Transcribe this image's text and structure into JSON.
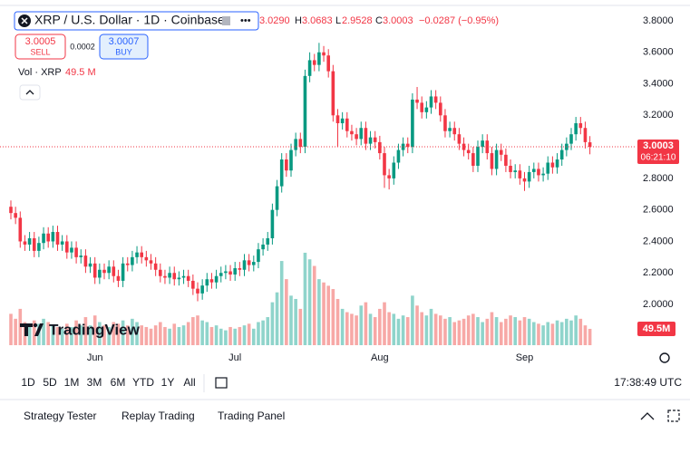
{
  "chart_data": {
    "type": "candlestick",
    "title": "XRP / U.S. Dollar · 1D · Coinbase",
    "readout": {
      "open": "3.0290",
      "high_label": "H",
      "high": "3.0683",
      "low_label": "L",
      "low": "2.9528",
      "close_label": "C",
      "close": "3.0003",
      "change": "−0.0287 (−0.95%)"
    },
    "sell_price": "3.0005",
    "sell_label": "SELL",
    "spread": "0.0002",
    "buy_price": "3.0007",
    "buy_label": "BUY",
    "volume_title": "Vol · XRP",
    "volume_value": "49.5 M",
    "up_color": "#089981",
    "down_color": "#f23645",
    "volume_up_color": "#8fd4cb",
    "volume_down_color": "#f7a8a6",
    "ylim": [
      1.73,
      3.886
    ],
    "yticks": [
      {
        "value": 3.8,
        "label": "3.8000"
      },
      {
        "value": 3.6,
        "label": "3.6000"
      },
      {
        "value": 3.4,
        "label": "3.4000"
      },
      {
        "value": 3.2,
        "label": "3.2000"
      },
      {
        "value": 3.0,
        "label": "3.0000"
      },
      {
        "value": 2.8,
        "label": "2.8000"
      },
      {
        "value": 2.6,
        "label": "2.6000"
      },
      {
        "value": 2.4,
        "label": "2.4000"
      },
      {
        "value": 2.2,
        "label": "2.2000"
      },
      {
        "value": 2.0,
        "label": "2.0000"
      }
    ],
    "xticks": [
      {
        "value": 18,
        "label": "Jun"
      },
      {
        "value": 48,
        "label": "Jul"
      },
      {
        "value": 79,
        "label": "Aug"
      },
      {
        "value": 110,
        "label": "Sep"
      }
    ],
    "grid": false,
    "last_price": {
      "value": 3.0003,
      "label": "3.0003",
      "countdown": "06:21:10"
    },
    "vlim": [
      0,
      332
    ],
    "ohlc": [
      [
        2.62,
        2.66,
        2.54,
        2.58
      ],
      [
        2.58,
        2.62,
        2.51,
        2.55
      ],
      [
        2.55,
        2.59,
        2.36,
        2.4
      ],
      [
        2.4,
        2.44,
        2.34,
        2.38
      ],
      [
        2.38,
        2.46,
        2.34,
        2.42
      ],
      [
        2.42,
        2.46,
        2.3,
        2.34
      ],
      [
        2.34,
        2.43,
        2.3,
        2.39
      ],
      [
        2.39,
        2.49,
        2.35,
        2.45
      ],
      [
        2.45,
        2.49,
        2.36,
        2.4
      ],
      [
        2.4,
        2.5,
        2.36,
        2.46
      ],
      [
        2.46,
        2.5,
        2.34,
        2.38
      ],
      [
        2.38,
        2.44,
        2.34,
        2.4
      ],
      [
        2.4,
        2.44,
        2.29,
        2.33
      ],
      [
        2.33,
        2.4,
        2.29,
        2.36
      ],
      [
        2.36,
        2.4,
        2.26,
        2.3
      ],
      [
        2.3,
        2.35,
        2.26,
        2.31
      ],
      [
        2.31,
        2.35,
        2.2,
        2.24
      ],
      [
        2.24,
        2.3,
        2.2,
        2.26
      ],
      [
        2.26,
        2.3,
        2.13,
        2.17
      ],
      [
        2.17,
        2.26,
        2.13,
        2.22
      ],
      [
        2.22,
        2.26,
        2.16,
        2.2
      ],
      [
        2.2,
        2.28,
        2.16,
        2.24
      ],
      [
        2.24,
        2.28,
        2.14,
        2.18
      ],
      [
        2.18,
        2.22,
        2.11,
        2.15
      ],
      [
        2.15,
        2.3,
        2.11,
        2.26
      ],
      [
        2.26,
        2.3,
        2.21,
        2.25
      ],
      [
        2.25,
        2.34,
        2.21,
        2.3
      ],
      [
        2.3,
        2.37,
        2.26,
        2.33
      ],
      [
        2.33,
        2.37,
        2.26,
        2.3
      ],
      [
        2.3,
        2.34,
        2.24,
        2.28
      ],
      [
        2.28,
        2.32,
        2.22,
        2.26
      ],
      [
        2.26,
        2.3,
        2.18,
        2.22
      ],
      [
        2.22,
        2.26,
        2.14,
        2.18
      ],
      [
        2.18,
        2.22,
        2.13,
        2.17
      ],
      [
        2.17,
        2.24,
        2.13,
        2.2
      ],
      [
        2.2,
        2.24,
        2.12,
        2.16
      ],
      [
        2.16,
        2.21,
        2.12,
        2.17
      ],
      [
        2.17,
        2.22,
        2.13,
        2.18
      ],
      [
        2.18,
        2.22,
        2.11,
        2.15
      ],
      [
        2.15,
        2.19,
        2.06,
        2.1
      ],
      [
        2.1,
        2.14,
        2.02,
        2.07
      ],
      [
        2.07,
        2.16,
        2.03,
        2.12
      ],
      [
        2.12,
        2.2,
        2.08,
        2.16
      ],
      [
        2.16,
        2.2,
        2.1,
        2.14
      ],
      [
        2.14,
        2.22,
        2.1,
        2.18
      ],
      [
        2.18,
        2.24,
        2.14,
        2.2
      ],
      [
        2.2,
        2.25,
        2.16,
        2.21
      ],
      [
        2.21,
        2.25,
        2.15,
        2.19
      ],
      [
        2.19,
        2.27,
        2.15,
        2.23
      ],
      [
        2.23,
        2.27,
        2.18,
        2.22
      ],
      [
        2.22,
        2.32,
        2.18,
        2.28
      ],
      [
        2.28,
        2.32,
        2.21,
        2.25
      ],
      [
        2.25,
        2.31,
        2.21,
        2.27
      ],
      [
        2.27,
        2.39,
        2.23,
        2.35
      ],
      [
        2.35,
        2.42,
        2.31,
        2.38
      ],
      [
        2.38,
        2.46,
        2.34,
        2.42
      ],
      [
        2.42,
        2.64,
        2.38,
        2.6
      ],
      [
        2.6,
        2.79,
        2.56,
        2.75
      ],
      [
        2.75,
        2.96,
        2.71,
        2.92
      ],
      [
        2.92,
        2.96,
        2.81,
        2.85
      ],
      [
        2.85,
        3.02,
        2.81,
        2.98
      ],
      [
        2.98,
        3.09,
        2.94,
        3.05
      ],
      [
        3.05,
        3.09,
        2.96,
        3.0
      ],
      [
        3.0,
        3.49,
        2.96,
        3.45
      ],
      [
        3.45,
        3.6,
        3.41,
        3.55
      ],
      [
        3.55,
        3.59,
        3.48,
        3.52
      ],
      [
        3.52,
        3.66,
        3.48,
        3.6
      ],
      [
        3.6,
        3.64,
        3.54,
        3.58
      ],
      [
        3.58,
        3.62,
        3.44,
        3.48
      ],
      [
        3.48,
        3.52,
        3.16,
        3.2
      ],
      [
        3.2,
        3.24,
        3.0,
        3.15
      ],
      [
        3.15,
        3.22,
        3.11,
        3.18
      ],
      [
        3.18,
        3.22,
        3.06,
        3.1
      ],
      [
        3.1,
        3.14,
        3.04,
        3.08
      ],
      [
        3.08,
        3.12,
        3.01,
        3.05
      ],
      [
        3.05,
        3.16,
        3.01,
        3.12
      ],
      [
        3.12,
        3.16,
        2.98,
        3.02
      ],
      [
        3.02,
        3.1,
        2.98,
        3.06
      ],
      [
        3.06,
        3.1,
        2.99,
        3.03
      ],
      [
        3.03,
        3.07,
        2.92,
        2.96
      ],
      [
        2.96,
        3.0,
        2.74,
        2.82
      ],
      [
        2.82,
        2.86,
        2.73,
        2.8
      ],
      [
        2.8,
        2.94,
        2.76,
        2.9
      ],
      [
        2.9,
        3.02,
        2.86,
        2.98
      ],
      [
        2.98,
        3.06,
        2.94,
        3.02
      ],
      [
        3.02,
        3.06,
        2.96,
        3.0
      ],
      [
        3.0,
        3.34,
        2.96,
        3.3
      ],
      [
        3.3,
        3.38,
        3.24,
        3.28
      ],
      [
        3.28,
        3.32,
        3.18,
        3.22
      ],
      [
        3.22,
        3.29,
        3.18,
        3.25
      ],
      [
        3.25,
        3.36,
        3.21,
        3.32
      ],
      [
        3.32,
        3.36,
        3.24,
        3.28
      ],
      [
        3.28,
        3.32,
        3.16,
        3.2
      ],
      [
        3.2,
        3.24,
        3.06,
        3.1
      ],
      [
        3.1,
        3.16,
        3.06,
        3.12
      ],
      [
        3.12,
        3.16,
        3.04,
        3.08
      ],
      [
        3.08,
        3.12,
        2.98,
        3.02
      ],
      [
        3.02,
        3.06,
        2.94,
        2.98
      ],
      [
        2.98,
        3.02,
        2.92,
        2.96
      ],
      [
        2.96,
        3.0,
        2.84,
        2.88
      ],
      [
        2.88,
        3.04,
        2.84,
        3.0
      ],
      [
        3.0,
        3.08,
        2.96,
        3.04
      ],
      [
        3.04,
        3.08,
        2.92,
        2.96
      ],
      [
        2.96,
        3.0,
        2.82,
        2.86
      ],
      [
        2.86,
        3.02,
        2.82,
        2.98
      ],
      [
        2.98,
        3.02,
        2.91,
        2.95
      ],
      [
        2.95,
        2.99,
        2.84,
        2.88
      ],
      [
        2.88,
        2.92,
        2.8,
        2.84
      ],
      [
        2.84,
        2.89,
        2.8,
        2.85
      ],
      [
        2.85,
        2.89,
        2.76,
        2.8
      ],
      [
        2.8,
        2.84,
        2.72,
        2.78
      ],
      [
        2.78,
        2.88,
        2.74,
        2.84
      ],
      [
        2.84,
        2.9,
        2.8,
        2.86
      ],
      [
        2.86,
        2.9,
        2.78,
        2.82
      ],
      [
        2.82,
        2.87,
        2.78,
        2.83
      ],
      [
        2.83,
        2.94,
        2.79,
        2.9
      ],
      [
        2.9,
        2.94,
        2.83,
        2.87
      ],
      [
        2.87,
        2.96,
        2.83,
        2.92
      ],
      [
        2.92,
        3.02,
        2.88,
        2.98
      ],
      [
        2.98,
        3.06,
        2.94,
        3.02
      ],
      [
        3.02,
        3.12,
        2.98,
        3.08
      ],
      [
        3.08,
        3.19,
        3.04,
        3.15
      ],
      [
        3.15,
        3.19,
        3.08,
        3.12
      ],
      [
        3.12,
        3.16,
        2.99,
        3.03
      ],
      [
        3.029,
        3.0683,
        2.9528,
        3.0003
      ]
    ],
    "volume": [
      95,
      80,
      110,
      70,
      60,
      75,
      65,
      80,
      70,
      60,
      55,
      50,
      65,
      55,
      75,
      60,
      85,
      60,
      90,
      70,
      60,
      55,
      70,
      65,
      75,
      60,
      80,
      70,
      60,
      55,
      50,
      60,
      70,
      55,
      50,
      65,
      55,
      60,
      70,
      85,
      90,
      75,
      70,
      55,
      60,
      50,
      45,
      55,
      50,
      55,
      60,
      65,
      50,
      70,
      75,
      85,
      130,
      160,
      255,
      200,
      150,
      140,
      110,
      280,
      260,
      240,
      200,
      190,
      180,
      170,
      140,
      110,
      100,
      95,
      90,
      120,
      130,
      95,
      85,
      110,
      130,
      100,
      95,
      80,
      90,
      85,
      150,
      120,
      100,
      90,
      110,
      95,
      90,
      80,
      85,
      70,
      75,
      80,
      90,
      95,
      85,
      70,
      80,
      100,
      85,
      70,
      80,
      90,
      85,
      75,
      85,
      80,
      70,
      65,
      60,
      70,
      65,
      75,
      70,
      80,
      75,
      90,
      80,
      60,
      49.5
    ],
    "volume_tag": {
      "value": 49.5,
      "label": "49.5M"
    }
  },
  "logo": "TradingView",
  "ranges": [
    "1D",
    "5D",
    "1M",
    "3M",
    "6M",
    "YTD",
    "1Y",
    "All"
  ],
  "clock": "17:38:49 UTC",
  "tabs": [
    "Strategy Tester",
    "Replay Trading",
    "Trading Panel"
  ]
}
